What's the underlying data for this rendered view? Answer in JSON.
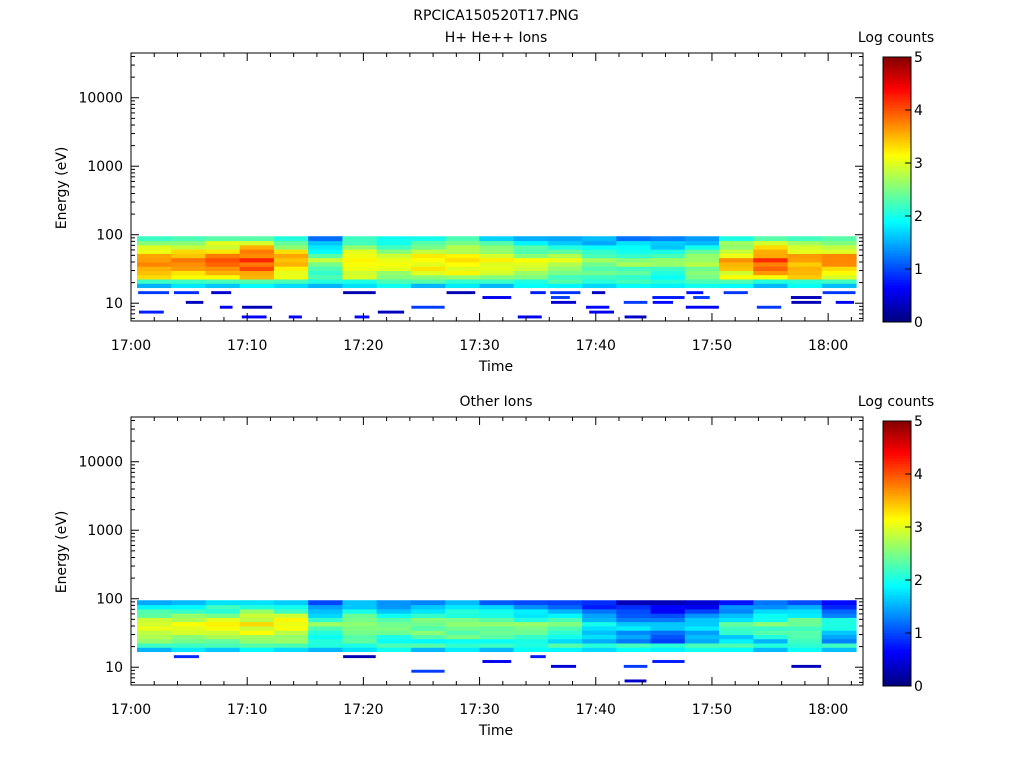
{
  "figure_title": "RPCICA150520T17.PNG",
  "colorbar": {
    "label": "Log counts",
    "range": [
      0,
      5
    ],
    "ticks": [
      "0",
      "1",
      "2",
      "3",
      "4",
      "5"
    ],
    "colormap": "jet",
    "colormap_stops": [
      "#00008f",
      "#0000ff",
      "#00ffff",
      "#ffff00",
      "#ff0000",
      "#800000"
    ]
  },
  "chart_data": [
    {
      "type": "heatmap",
      "title": "H+ He++ Ions",
      "xlabel": "Time",
      "ylabel": "Energy (eV)",
      "y_scale": "log",
      "ylim": [
        5.5,
        45000
      ],
      "xlim": [
        "17:00",
        "18:03"
      ],
      "x_ticks": [
        "17:00",
        "17:10",
        "17:20",
        "17:30",
        "17:40",
        "17:50",
        "18:00"
      ],
      "y_ticks": [
        "10",
        "100",
        "1000",
        "10000"
      ],
      "time_bins": 21,
      "band_energy_range_eV": [
        17,
        95
      ],
      "sparse_energy_range_eV": [
        6,
        16
      ],
      "mean_log_counts_per_bin": [
        3.4,
        3.5,
        3.6,
        3.8,
        3.3,
        2.3,
        3.0,
        2.9,
        3.0,
        3.1,
        2.9,
        2.6,
        2.5,
        2.4,
        2.3,
        2.2,
        2.5,
        3.2,
        3.6,
        3.4,
        3.4
      ],
      "grid": false,
      "legend": "none"
    },
    {
      "type": "heatmap",
      "title": "Other Ions",
      "xlabel": "Time",
      "ylabel": "Energy (eV)",
      "y_scale": "log",
      "ylim": [
        5.5,
        45000
      ],
      "xlim": [
        "17:00",
        "18:03"
      ],
      "x_ticks": [
        "17:00",
        "17:10",
        "17:20",
        "17:30",
        "17:40",
        "17:50",
        "18:00"
      ],
      "y_ticks": [
        "10",
        "100",
        "1000",
        "10000"
      ],
      "time_bins": 21,
      "band_energy_range_eV": [
        17,
        95
      ],
      "sparse_energy_range_eV": [
        6,
        16
      ],
      "mean_log_counts_per_bin": [
        2.7,
        2.8,
        2.8,
        2.9,
        2.9,
        2.1,
        2.4,
        2.3,
        2.3,
        2.4,
        2.3,
        2.1,
        2.0,
        1.7,
        1.4,
        1.2,
        1.5,
        1.9,
        2.0,
        2.2,
        1.7
      ],
      "grid": false,
      "legend": "none"
    }
  ]
}
